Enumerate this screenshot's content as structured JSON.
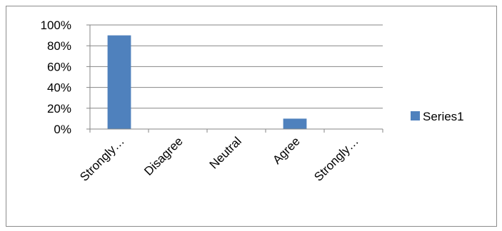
{
  "chart_data": {
    "type": "bar",
    "categories": [
      "Strongly…",
      "Disagree",
      "Neutral",
      "Agree",
      "Strongly…"
    ],
    "series": [
      {
        "name": "Series1",
        "values": [
          0.9,
          0.0,
          0.0,
          0.1,
          0.0
        ],
        "color": "#4f81bd"
      }
    ],
    "ylim": [
      0,
      1.0
    ],
    "yticks": [
      "0%",
      "20%",
      "40%",
      "60%",
      "80%",
      "100%"
    ],
    "grid": true,
    "legend_position": "right"
  }
}
